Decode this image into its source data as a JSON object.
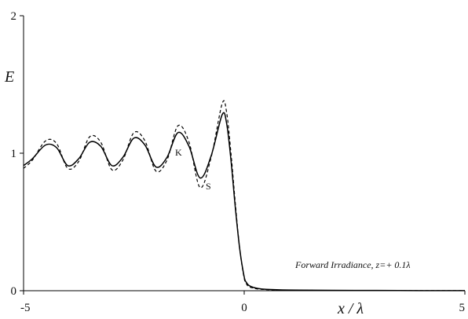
{
  "chart_data": {
    "type": "line",
    "title": "",
    "xlabel": "x / λ",
    "ylabel": "E",
    "xlim": [
      -5,
      5
    ],
    "ylim": [
      0,
      2
    ],
    "xticks": [
      "-5",
      "0",
      "5"
    ],
    "yticks": [
      "0",
      "1",
      "2"
    ],
    "grid": false,
    "annotation": "Forward Irradiance, z=+ 0.1λ",
    "series": [
      {
        "name": "K",
        "style": "solid",
        "color": "#000000",
        "x": [
          -5.0,
          -4.8,
          -4.5,
          -4.25,
          -4.0,
          -3.75,
          -3.5,
          -3.25,
          -3.0,
          -2.75,
          -2.5,
          -2.25,
          -2.0,
          -1.75,
          -1.5,
          -1.25,
          -1.0,
          -0.75,
          -0.5,
          -0.4,
          -0.3,
          -0.2,
          -0.1,
          0.0,
          0.05,
          0.1,
          0.2,
          0.3,
          0.5,
          1.0,
          2.0,
          3.0,
          4.0,
          5.0
        ],
        "y": [
          0.91,
          0.96,
          1.06,
          1.04,
          0.91,
          0.96,
          1.08,
          1.05,
          0.91,
          0.97,
          1.11,
          1.06,
          0.9,
          0.97,
          1.15,
          1.05,
          0.82,
          0.98,
          1.28,
          1.22,
          0.95,
          0.6,
          0.3,
          0.1,
          0.06,
          0.04,
          0.025,
          0.017,
          0.01,
          0.005,
          0.003,
          0.002,
          0.001,
          0.001
        ]
      },
      {
        "name": "S",
        "style": "dashed",
        "color": "#000000",
        "x": [
          -5.0,
          -4.8,
          -4.5,
          -4.25,
          -4.0,
          -3.75,
          -3.5,
          -3.25,
          -3.0,
          -2.75,
          -2.5,
          -2.25,
          -2.0,
          -1.75,
          -1.5,
          -1.25,
          -1.0,
          -0.75,
          -0.5,
          -0.4,
          -0.3,
          -0.2,
          -0.1,
          0.0,
          0.05,
          0.1,
          0.2,
          0.3,
          0.5,
          1.0,
          2.0,
          3.0,
          4.0,
          5.0
        ],
        "y": [
          0.89,
          0.95,
          1.09,
          1.07,
          0.89,
          0.94,
          1.12,
          1.08,
          0.88,
          0.95,
          1.15,
          1.09,
          0.87,
          0.95,
          1.2,
          1.08,
          0.75,
          0.97,
          1.36,
          1.3,
          1.0,
          0.63,
          0.3,
          0.09,
          0.05,
          0.03,
          0.02,
          0.013,
          0.008,
          0.004,
          0.002,
          0.001,
          0.001,
          0.001
        ]
      }
    ]
  }
}
